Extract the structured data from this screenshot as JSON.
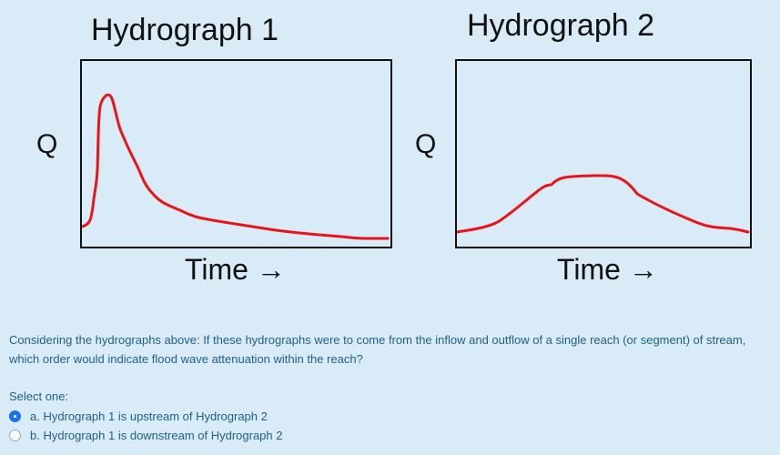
{
  "hydrograph1": {
    "title": "Hydrograph 1",
    "ylabel": "Q",
    "xlabel": "Time →"
  },
  "hydrograph2": {
    "title": "Hydrograph 2",
    "ylabel": "Q",
    "xlabel": "Time →"
  },
  "colors": {
    "curve": "#e8141a",
    "background": "#d8ebf7",
    "text_blue": "#1f5f8a"
  },
  "question": {
    "text": "Considering the hydrographs above: If these hydrographs were to come from the inflow and outflow of a single reach (or segment) of stream, which order would indicate flood wave attenuation within the reach?",
    "select_label": "Select one:",
    "options": [
      {
        "label": "a. Hydrograph 1 is upstream of Hydrograph 2",
        "selected": true
      },
      {
        "label": "b. Hydrograph 1 is downstream of Hydrograph 2",
        "selected": false
      }
    ]
  }
}
